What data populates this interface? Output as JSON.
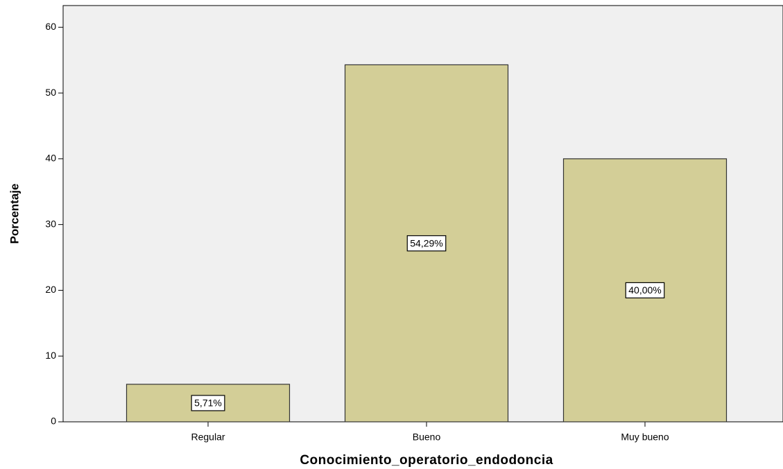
{
  "chart_data": {
    "type": "bar",
    "x_label": "Conocimiento_operatorio_endodoncia",
    "y_label": "Porcentaje",
    "categories": [
      "Regular",
      "Bueno",
      "Muy bueno"
    ],
    "values": [
      5.71,
      54.29,
      40.0
    ],
    "value_labels": [
      "5,71%",
      "54,29%",
      "40,00%"
    ],
    "color": "#d3ce97",
    "ylim": [
      0,
      63.3
    ],
    "yticks": [
      0,
      10,
      20,
      30,
      40,
      50,
      60
    ],
    "grid": false
  }
}
